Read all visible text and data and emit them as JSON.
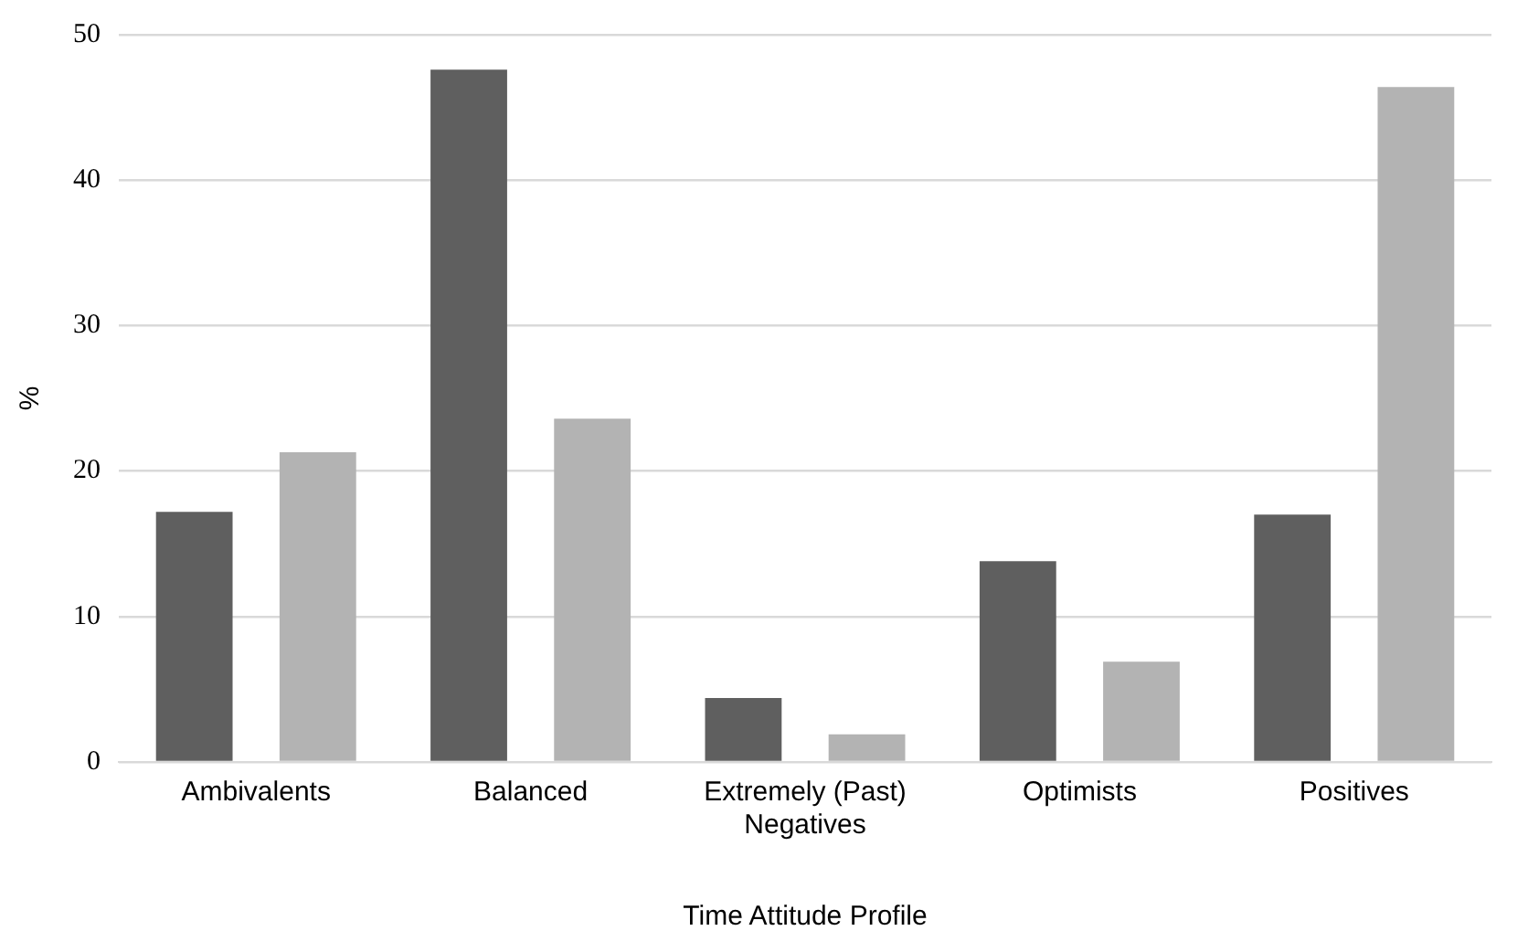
{
  "chart_data": {
    "type": "bar",
    "xlabel": "Time Attitude Profile",
    "ylabel": "%",
    "categories": [
      "Ambivalents",
      "Balanced",
      "Extremely (Past) Negatives",
      "Optimists",
      "Positives"
    ],
    "series": [
      {
        "color": "#5f5f5f",
        "values": [
          17.2,
          47.6,
          4.4,
          13.8,
          17.0
        ]
      },
      {
        "color": "#b3b3b3",
        "values": [
          21.3,
          23.6,
          1.9,
          6.9,
          46.4
        ]
      }
    ],
    "ylim": [
      0,
      50
    ],
    "yticks": [
      0,
      10,
      20,
      30,
      40,
      50
    ],
    "grid": "y",
    "legend": false
  }
}
